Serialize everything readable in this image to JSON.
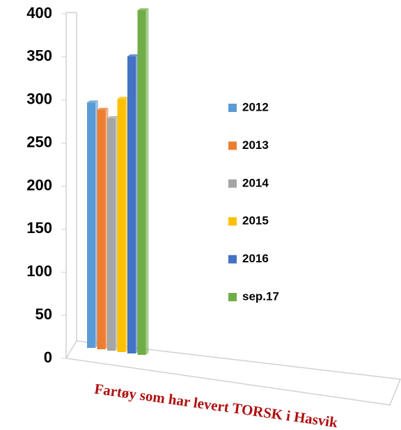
{
  "chart_data": {
    "type": "bar3d",
    "categories": [
      "Fartøy som har levert TORSK i Hasvik"
    ],
    "series": [
      {
        "name": "2012",
        "color": "#5b9bd5",
        "values": [
          285
        ]
      },
      {
        "name": "2013",
        "color": "#ed7d31",
        "values": [
          278
        ]
      },
      {
        "name": "2014",
        "color": "#a5a5a5",
        "values": [
          270
        ]
      },
      {
        "name": "2015",
        "color": "#ffc000",
        "values": [
          294
        ]
      },
      {
        "name": "2016",
        "color": "#4472c4",
        "values": [
          345
        ]
      },
      {
        "name": "sep.17",
        "color": "#70ad47",
        "values": [
          400
        ]
      }
    ],
    "ylim": [
      0,
      400
    ],
    "yticks": [
      0,
      50,
      100,
      150,
      200,
      250,
      300,
      350,
      400
    ],
    "legend": "right"
  }
}
